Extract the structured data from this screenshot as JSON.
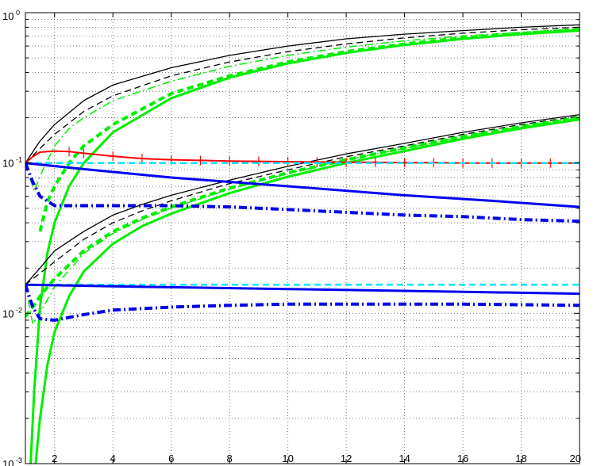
{
  "chart_data": {
    "type": "line",
    "xlim": [
      1,
      20
    ],
    "ylim": [
      0.001,
      1
    ],
    "yscale": "log",
    "grid": true,
    "grid_style": "dotted",
    "legend": "none",
    "x_tick_labels": [
      "2",
      "4",
      "6",
      "8",
      "10",
      "12",
      "14",
      "16",
      "18",
      "20"
    ],
    "y_tick_labels": [
      {
        "base": "10",
        "exp": "-3"
      },
      {
        "base": "10",
        "exp": "-2"
      },
      {
        "base": "10",
        "exp": "-1"
      },
      {
        "base": "10",
        "exp": "0"
      }
    ],
    "series": [
      {
        "color": "#000000",
        "style": "solid",
        "width": 1.3,
        "x": [
          1,
          1.5,
          2,
          3,
          4,
          6,
          8,
          10,
          12,
          14,
          16,
          18,
          20
        ],
        "y": [
          0.1,
          0.14,
          0.18,
          0.26,
          0.33,
          0.43,
          0.52,
          0.6,
          0.67,
          0.72,
          0.76,
          0.8,
          0.83
        ]
      },
      {
        "color": "#000000",
        "style": "dashed",
        "width": 1.3,
        "x": [
          1,
          1.5,
          2,
          3,
          4,
          6,
          8,
          10,
          12,
          14,
          16,
          18,
          20
        ],
        "y": [
          0.1,
          0.125,
          0.155,
          0.22,
          0.28,
          0.38,
          0.47,
          0.55,
          0.62,
          0.68,
          0.73,
          0.77,
          0.8
        ]
      },
      {
        "color": "#00ee00",
        "style": "dashdot",
        "width": 1.5,
        "x": [
          1,
          1.3,
          1.6,
          2,
          2.5,
          3,
          4,
          6,
          8,
          10,
          12,
          14,
          16,
          18,
          20
        ],
        "y": [
          0.1,
          0.065,
          0.09,
          0.13,
          0.17,
          0.2,
          0.26,
          0.35,
          0.44,
          0.52,
          0.59,
          0.65,
          0.7,
          0.74,
          0.78
        ]
      },
      {
        "color": "#00ee00",
        "style": "solid",
        "width": 3,
        "x": [
          1.18,
          1.3,
          1.5,
          1.75,
          2,
          2.5,
          3,
          4,
          6,
          8,
          10,
          12,
          14,
          16,
          18,
          20
        ],
        "y": [
          0.001,
          0.003,
          0.011,
          0.025,
          0.04,
          0.07,
          0.1,
          0.16,
          0.27,
          0.37,
          0.46,
          0.54,
          0.61,
          0.67,
          0.72,
          0.76
        ]
      },
      {
        "color": "#00ee00",
        "style": "dashed",
        "width": 4,
        "x": [
          1.5,
          1.75,
          2,
          2.5,
          3,
          4,
          6,
          8,
          10,
          12,
          14,
          16,
          18,
          20
        ],
        "y": [
          0.035,
          0.055,
          0.07,
          0.1,
          0.13,
          0.18,
          0.29,
          0.38,
          0.47,
          0.55,
          0.62,
          0.68,
          0.73,
          0.77
        ]
      },
      {
        "color": "#000000",
        "style": "solid",
        "width": 1.3,
        "x": [
          1,
          1.5,
          2,
          3,
          4,
          5,
          6,
          8,
          10,
          12,
          14,
          16,
          18,
          20
        ],
        "y": [
          0.0155,
          0.02,
          0.026,
          0.035,
          0.045,
          0.053,
          0.061,
          0.077,
          0.095,
          0.115,
          0.135,
          0.16,
          0.185,
          0.21
        ]
      },
      {
        "color": "#000000",
        "style": "dashed",
        "width": 1.3,
        "x": [
          1,
          1.5,
          2,
          3,
          4,
          5,
          6,
          8,
          10,
          12,
          14,
          16,
          18,
          20
        ],
        "y": [
          0.0155,
          0.0185,
          0.022,
          0.031,
          0.04,
          0.048,
          0.056,
          0.073,
          0.09,
          0.11,
          0.13,
          0.155,
          0.18,
          0.205
        ]
      },
      {
        "color": "#00ee00",
        "style": "dashdot",
        "width": 1.5,
        "x": [
          1,
          1.25,
          1.5,
          2,
          3,
          4,
          5,
          6,
          8,
          10,
          12,
          14,
          16,
          18,
          20
        ],
        "y": [
          0.0155,
          0.0085,
          0.01,
          0.015,
          0.025,
          0.034,
          0.042,
          0.05,
          0.067,
          0.085,
          0.105,
          0.125,
          0.15,
          0.175,
          0.2
        ]
      },
      {
        "color": "#00ee00",
        "style": "solid",
        "width": 3,
        "x": [
          1.35,
          1.5,
          1.75,
          2,
          2.5,
          3,
          4,
          5,
          6,
          8,
          10,
          12,
          14,
          16,
          18,
          20
        ],
        "y": [
          0.001,
          0.002,
          0.0045,
          0.0075,
          0.013,
          0.019,
          0.029,
          0.038,
          0.046,
          0.063,
          0.081,
          0.1,
          0.12,
          0.145,
          0.17,
          0.195
        ]
      },
      {
        "color": "#00ee00",
        "style": "dashed",
        "width": 4,
        "x": [
          1,
          1.25,
          1.5,
          2,
          3,
          4,
          5,
          6,
          8,
          10,
          12,
          14,
          16,
          18,
          20
        ],
        "y": [
          0.0095,
          0.011,
          0.013,
          0.017,
          0.026,
          0.035,
          0.043,
          0.051,
          0.068,
          0.086,
          0.105,
          0.126,
          0.15,
          0.175,
          0.2
        ]
      },
      {
        "color": "#ff0000",
        "style": "solid",
        "width": 2,
        "marker": "plus",
        "x": [
          1,
          1.25,
          1.5,
          2,
          2.5,
          3,
          4,
          5,
          6,
          7,
          8,
          9,
          10,
          11,
          12,
          13,
          14,
          15,
          16,
          17,
          18,
          19,
          20
        ],
        "y": [
          0.1,
          0.11,
          0.118,
          0.12,
          0.119,
          0.116,
          0.111,
          0.107,
          0.105,
          0.104,
          0.103,
          0.1025,
          0.102,
          0.1015,
          0.101,
          0.101,
          0.1005,
          0.1005,
          0.1,
          0.1,
          0.1,
          0.1,
          0.1
        ]
      },
      {
        "color": "#00e5ff",
        "style": "dashed",
        "width": 2.5,
        "x": [
          1,
          2,
          5,
          10,
          15,
          20
        ],
        "y": [
          0.1,
          0.1,
          0.1,
          0.1,
          0.1,
          0.1
        ]
      },
      {
        "color": "#0000ee",
        "style": "solid",
        "width": 3,
        "x": [
          1,
          3,
          6,
          10,
          14,
          17,
          20
        ],
        "y": [
          0.1,
          0.091,
          0.08,
          0.07,
          0.061,
          0.056,
          0.051
        ]
      },
      {
        "color": "#0000ee",
        "style": "dashdot",
        "width": 4,
        "x": [
          1,
          1.25,
          1.5,
          2,
          3,
          4,
          6,
          8,
          10,
          12,
          14,
          16,
          18,
          20
        ],
        "y": [
          0.1,
          0.075,
          0.06,
          0.052,
          0.052,
          0.052,
          0.052,
          0.051,
          0.049,
          0.047,
          0.045,
          0.044,
          0.042,
          0.041
        ]
      },
      {
        "color": "#00e5ff",
        "style": "dashed",
        "width": 2.5,
        "x": [
          1,
          5,
          10,
          15,
          20
        ],
        "y": [
          0.0155,
          0.0155,
          0.0155,
          0.0155,
          0.0155
        ]
      },
      {
        "color": "#0000ee",
        "style": "solid",
        "width": 3,
        "x": [
          1,
          5,
          10,
          15,
          20
        ],
        "y": [
          0.0155,
          0.015,
          0.0145,
          0.014,
          0.0135
        ]
      },
      {
        "color": "#0000ee",
        "style": "dashdot",
        "width": 4,
        "x": [
          1,
          1.25,
          1.5,
          2,
          3,
          4,
          6,
          8,
          10,
          12,
          14,
          16,
          18,
          20
        ],
        "y": [
          0.0155,
          0.011,
          0.0092,
          0.009,
          0.0098,
          0.0105,
          0.011,
          0.0113,
          0.0115,
          0.0115,
          0.0115,
          0.0115,
          0.0114,
          0.0113
        ]
      }
    ]
  }
}
